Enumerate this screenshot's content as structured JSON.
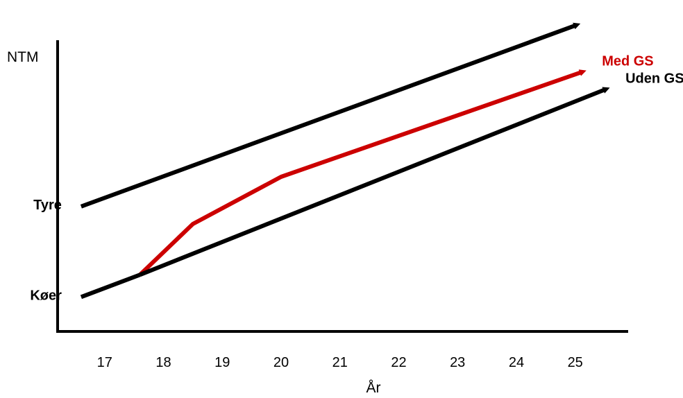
{
  "chart_data": {
    "type": "line",
    "title": "",
    "xlabel": "År",
    "ylabel": "NTM",
    "x_ticks": [
      "17",
      "18",
      "19",
      "20",
      "21",
      "22",
      "23",
      "24",
      "25"
    ],
    "xlim": [
      16.2,
      25.9
    ],
    "ylim": [
      0,
      100
    ],
    "grid": false,
    "series": [
      {
        "name": "Tyre",
        "color": "#000000",
        "points": [
          [
            16.6,
            40.5
          ],
          [
            25.0,
            98.5
          ]
        ],
        "arrow": true,
        "label_position": "left"
      },
      {
        "name": "Med GS",
        "color": "#cc0000",
        "points": [
          [
            17.6,
            18.6
          ],
          [
            18.5,
            34.9
          ],
          [
            20.0,
            50.0
          ],
          [
            25.1,
            83.5
          ]
        ],
        "arrow": true,
        "label_position": "end"
      },
      {
        "name": "Uden GS",
        "color": "#000000",
        "points": [
          [
            17.6,
            18.6
          ],
          [
            25.5,
            77.9
          ]
        ],
        "arrow": true,
        "label_position": "end"
      },
      {
        "name": "Køer",
        "color": "#000000",
        "points": [
          [
            16.6,
            11.5
          ],
          [
            17.6,
            18.6
          ]
        ],
        "arrow": false,
        "label_position": "left"
      }
    ]
  }
}
